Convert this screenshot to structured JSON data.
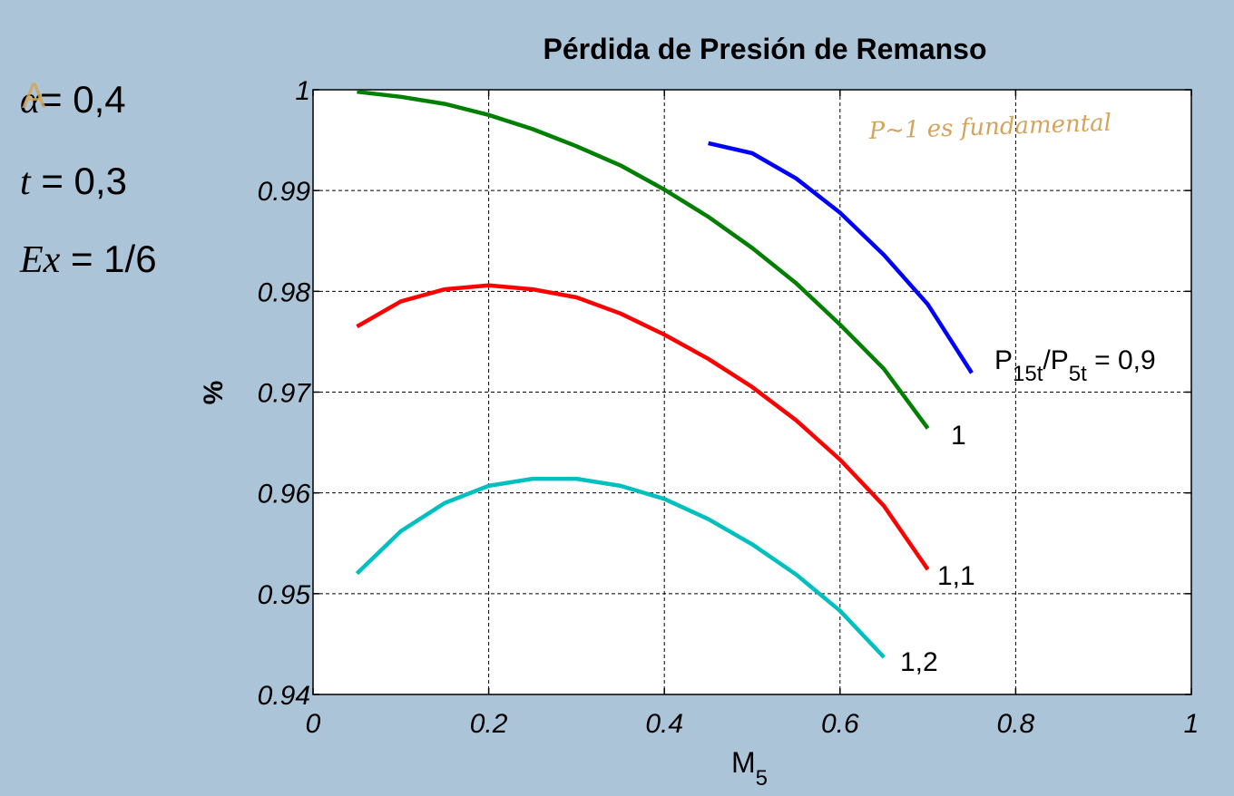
{
  "params": [
    {
      "symbol": "α",
      "rest": "= 0,4",
      "struck_mark": "A"
    },
    {
      "symbol": "t",
      "rest": " = 0,3"
    },
    {
      "symbol": "Ex",
      "rest": " = 1/6"
    }
  ],
  "annotation_handwritten": "P~1 es fundamental",
  "chart_data": {
    "type": "line",
    "title": "Pérdida de Presión de Remanso",
    "xlabel": "M",
    "xlabel_sub": "5",
    "ylabel": "%",
    "xlim": [
      0,
      1
    ],
    "ylim": [
      0.94,
      1
    ],
    "xticks": [
      0,
      0.2,
      0.4,
      0.6,
      0.8,
      1
    ],
    "xtick_labels": [
      "0",
      "0.2",
      "0.4",
      "0.6",
      "0.8",
      "1"
    ],
    "yticks": [
      0.94,
      0.95,
      0.96,
      0.97,
      0.98,
      0.99,
      1
    ],
    "ytick_labels": [
      "0.94",
      "0.95",
      "0.96",
      "0.97",
      "0.98",
      "0.99",
      "1"
    ],
    "grid": true,
    "series": [
      {
        "name": "0,9",
        "label_main": "P",
        "label_sub1": "15t",
        "label_mid": "/P",
        "label_sub2": "5t",
        "label_tail": " = 0,9",
        "color": "#0000ff",
        "x": [
          0.45,
          0.5,
          0.55,
          0.6,
          0.65,
          0.7,
          0.75
        ],
        "y": [
          0.9947,
          0.9937,
          0.9912,
          0.9878,
          0.9836,
          0.9787,
          0.9719
        ]
      },
      {
        "name": "1",
        "color": "#007f00",
        "x": [
          0.05,
          0.1,
          0.15,
          0.2,
          0.25,
          0.3,
          0.35,
          0.4,
          0.45,
          0.5,
          0.55,
          0.6,
          0.65,
          0.7
        ],
        "y": [
          0.9998,
          0.9993,
          0.9986,
          0.9975,
          0.9961,
          0.9944,
          0.9925,
          0.9901,
          0.9874,
          0.9843,
          0.9808,
          0.9767,
          0.9723,
          0.9664
        ]
      },
      {
        "name": "1,1",
        "color": "#ff0000",
        "x": [
          0.05,
          0.1,
          0.15,
          0.2,
          0.25,
          0.3,
          0.35,
          0.4,
          0.45,
          0.5,
          0.55,
          0.6,
          0.65,
          0.7
        ],
        "y": [
          0.9765,
          0.979,
          0.9802,
          0.9806,
          0.9802,
          0.9794,
          0.9778,
          0.9757,
          0.9733,
          0.9705,
          0.9672,
          0.9633,
          0.9587,
          0.9524
        ]
      },
      {
        "name": "1,2",
        "color": "#00bfbf",
        "x": [
          0.05,
          0.1,
          0.15,
          0.2,
          0.25,
          0.3,
          0.35,
          0.4,
          0.45,
          0.5,
          0.55,
          0.6,
          0.65
        ],
        "y": [
          0.952,
          0.9562,
          0.959,
          0.9607,
          0.9614,
          0.9614,
          0.9607,
          0.9594,
          0.9574,
          0.9549,
          0.9519,
          0.9483,
          0.9437
        ]
      }
    ]
  }
}
